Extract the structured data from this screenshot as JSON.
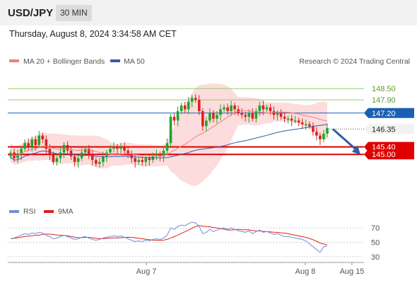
{
  "header": {
    "symbol": "USD/JPY",
    "timeframe": "30 MIN",
    "datetime": "Thursday, August 8, 2024 3:34:58 AM CET"
  },
  "legend": {
    "ma20": "MA 20 + Bollinger Bands",
    "ma50": "MA 50",
    "research": "Research © 2024 Trading Central",
    "rsi": "RSI",
    "rsi_ma": "9MA"
  },
  "colors": {
    "candle_up": "#1fa52b",
    "candle_down": "#e02020",
    "bollinger_fill": "#fbd6d6",
    "ma20": "#f08080",
    "ma50": "#3a59a8",
    "resistance_green": "#9acd6a",
    "pivot_blue": "#1b5fb5",
    "support_red": "#e00000",
    "rsi_line": "#6f8fd8",
    "rsi_ma_line": "#e02020"
  },
  "chart_data": [
    {
      "type": "candlestick",
      "ylim": [
        142.6,
        149.6
      ],
      "x_ticks": [
        "Aug 7",
        "Aug 8",
        "Aug 15"
      ],
      "levels": [
        {
          "value": 148.5,
          "label": "148.50",
          "kind": "resistance"
        },
        {
          "value": 147.9,
          "label": "147.90",
          "kind": "resistance"
        },
        {
          "value": 147.2,
          "label": "147.20",
          "kind": "pivot"
        },
        {
          "value": 146.35,
          "label": "146.35",
          "kind": "last"
        },
        {
          "value": 145.4,
          "label": "145.40",
          "kind": "support"
        },
        {
          "value": 145.0,
          "label": "145.00",
          "kind": "support"
        }
      ],
      "close": [
        145.1,
        144.8,
        145.0,
        145.3,
        145.6,
        145.4,
        145.8,
        145.5,
        146.0,
        145.8,
        145.3,
        145.0,
        144.6,
        144.8,
        145.1,
        145.5,
        145.2,
        144.9,
        144.6,
        144.8,
        145.1,
        145.3,
        145.0,
        144.7,
        144.5,
        144.6,
        144.9,
        145.1,
        145.3,
        145.4,
        145.3,
        145.4,
        145.2,
        145.0,
        144.8,
        144.6,
        144.7,
        144.6,
        144.8,
        144.7,
        144.9,
        145.0,
        144.9,
        145.2,
        145.6,
        147.0,
        146.8,
        147.3,
        147.6,
        147.4,
        147.8,
        148.0,
        147.9,
        147.3,
        146.5,
        146.8,
        147.2,
        146.9,
        147.1,
        147.4,
        147.5,
        147.3,
        147.6,
        147.4,
        147.2,
        147.1,
        147.0,
        147.2,
        146.9,
        147.3,
        147.6,
        147.4,
        147.5,
        147.3,
        147.1,
        147.2,
        147.0,
        146.9,
        146.9,
        146.8,
        146.8,
        146.7,
        146.6,
        146.6,
        146.5,
        146.2,
        146.0,
        145.8,
        146.1,
        146.4
      ]
    },
    {
      "type": "line",
      "name": "RSI",
      "ylim": [
        25,
        80
      ],
      "y_ticks": [
        30,
        50,
        70
      ],
      "values": [
        55,
        56,
        58,
        60,
        62,
        61,
        63,
        62,
        64,
        63,
        60,
        58,
        55,
        56,
        58,
        60,
        58,
        56,
        54,
        55,
        57,
        58,
        56,
        54,
        53,
        54,
        56,
        57,
        58,
        59,
        58,
        59,
        57,
        55,
        53,
        51,
        52,
        51,
        53,
        52,
        54,
        55,
        54,
        56,
        60,
        70,
        68,
        72,
        74,
        73,
        76,
        78,
        77,
        72,
        62,
        64,
        68,
        65,
        67,
        69,
        70,
        68,
        70,
        68,
        66,
        65,
        64,
        66,
        62,
        65,
        67,
        64,
        65,
        63,
        61,
        62,
        60,
        58,
        58,
        57,
        56,
        55,
        54,
        52,
        48,
        44,
        40,
        36,
        44,
        45
      ]
    }
  ]
}
